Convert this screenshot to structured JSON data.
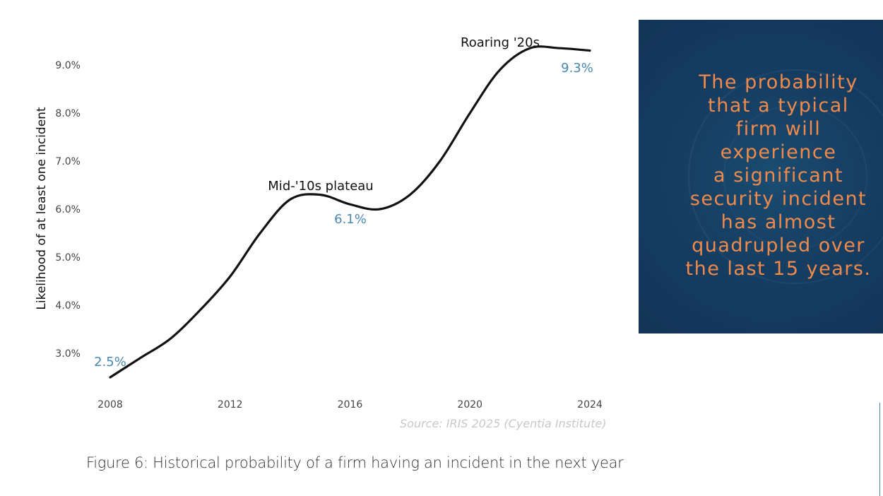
{
  "chart_data": {
    "type": "line",
    "title": "",
    "ylabel": "Likelihood of at least one incident",
    "xlabel": "",
    "xlim": [
      2008,
      2024
    ],
    "ylim": [
      2.3,
      9.5
    ],
    "x_ticks": [
      "2008",
      "2012",
      "2016",
      "2020",
      "2024"
    ],
    "y_ticks": [
      "3.0%",
      "4.0%",
      "5.0%",
      "6.0%",
      "7.0%",
      "8.0%",
      "9.0%"
    ],
    "grid": false,
    "series": [
      {
        "x": [
          2008,
          2009,
          2010,
          2011,
          2012,
          2013,
          2014,
          2015,
          2016,
          2017,
          2018,
          2019,
          2020,
          2021,
          2022,
          2023,
          2024
        ],
        "y": [
          2.5,
          2.9,
          3.3,
          3.9,
          4.6,
          5.5,
          6.2,
          6.3,
          6.1,
          6.0,
          6.3,
          7.0,
          8.0,
          8.9,
          9.35,
          9.35,
          9.3
        ]
      }
    ],
    "data_labels": [
      {
        "x": 2008,
        "y": 2.5,
        "text": "2.5%"
      },
      {
        "x": 2016,
        "y": 6.1,
        "text": "6.1%"
      },
      {
        "x": 2024,
        "y": 9.3,
        "text": "9.3%"
      }
    ],
    "annotations": [
      {
        "x": 2015,
        "text": "Mid-'10s plateau"
      },
      {
        "x": 2022,
        "text": "Roaring '20s"
      }
    ],
    "line_color": "#111111",
    "label_color": "#4a87b0"
  },
  "source": "Source: IRIS 2025 (Cyentia Institute)",
  "caption": "Figure 6: Historical probability of a firm having an incident in the next year",
  "callout": {
    "lines": [
      "The probability",
      "that a typical",
      "firm will",
      "experience",
      "a significant",
      "security incident",
      "has almost",
      "quadrupled over",
      "the last 15 years."
    ],
    "text_color": "#f08a4b",
    "background": "#163f63"
  }
}
